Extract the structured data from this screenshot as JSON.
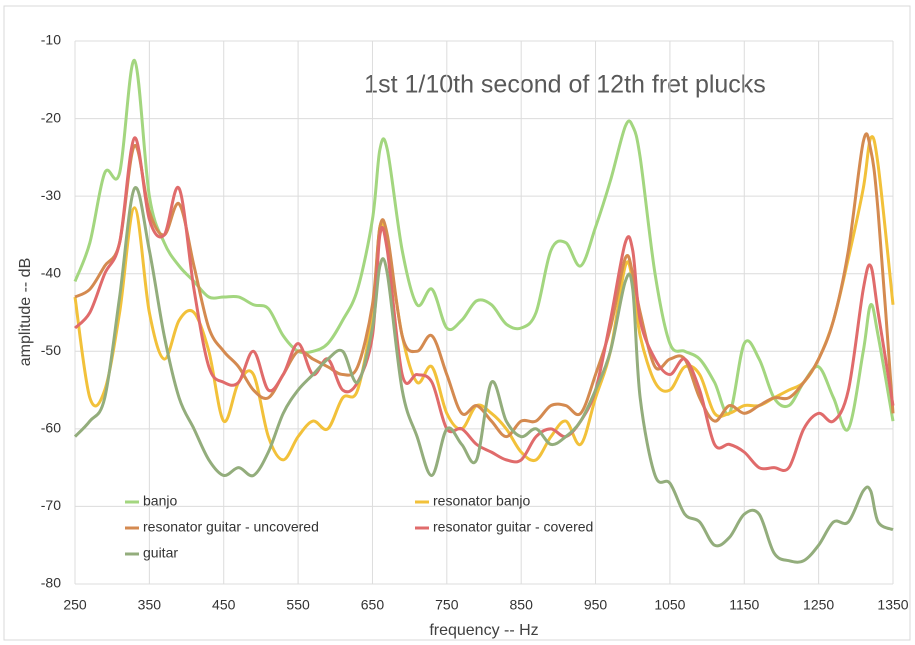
{
  "chart_data": {
    "type": "line",
    "title": "1st 1/10th second of 12th fret plucks",
    "x_label": "frequency -- Hz",
    "y_label": "amplitude -- dB",
    "x": [
      250,
      270,
      290,
      310,
      330,
      350,
      370,
      390,
      410,
      430,
      450,
      470,
      490,
      510,
      530,
      550,
      570,
      590,
      610,
      630,
      650,
      660,
      670,
      690,
      710,
      730,
      750,
      770,
      790,
      810,
      830,
      850,
      870,
      890,
      910,
      930,
      950,
      970,
      990,
      1000,
      1010,
      1030,
      1050,
      1070,
      1090,
      1110,
      1130,
      1150,
      1170,
      1190,
      1210,
      1230,
      1250,
      1270,
      1290,
      1310,
      1320,
      1330,
      1350
    ],
    "series": [
      {
        "name": "banjo",
        "color": "#a3d67f",
        "values": [
          -41,
          -36,
          -27,
          -27,
          -12.5,
          -30,
          -36,
          -39,
          -41,
          -43,
          -43,
          -43,
          -44,
          -44.5,
          -48,
          -50,
          -50,
          -49,
          -46,
          -42,
          -33,
          -24,
          -24,
          -37,
          -44,
          -42,
          -47,
          -46,
          -43.5,
          -44,
          -46.5,
          -47,
          -45,
          -37,
          -36,
          -39,
          -34,
          -28,
          -21,
          -21,
          -25,
          -40,
          -49,
          -50,
          -51,
          -54,
          -58,
          -49,
          -51,
          -56,
          -57,
          -54,
          -52,
          -56,
          -60,
          -50,
          -44,
          -48,
          -59
        ]
      },
      {
        "name": "resonator banjo",
        "color": "#f2c13a",
        "values": [
          -43,
          -56,
          -55,
          -45,
          -31.5,
          -45,
          -51,
          -46,
          -45,
          -50,
          -59,
          -54,
          -53,
          -61,
          -64,
          -61,
          -59,
          -60,
          -56,
          -55,
          -45,
          -34,
          -36,
          -48,
          -54,
          -52,
          -58,
          -60,
          -57,
          -58,
          -60,
          -63,
          -64,
          -61,
          -59,
          -62,
          -56,
          -50,
          -39,
          -41,
          -48,
          -54,
          -55,
          -52,
          -53,
          -58,
          -58,
          -57,
          -57,
          -56,
          -55,
          -54,
          -51,
          -46,
          -38,
          -29,
          -22.5,
          -26,
          -44
        ]
      },
      {
        "name": "resonator guitar - uncovered",
        "color": "#d48a50",
        "values": [
          -43,
          -42,
          -39,
          -36,
          -23.5,
          -32,
          -35,
          -31,
          -39,
          -47,
          -50,
          -52,
          -55,
          -56,
          -53,
          -50,
          -51,
          -52,
          -53,
          -52,
          -44,
          -34,
          -35,
          -48,
          -50,
          -48,
          -53,
          -58,
          -57,
          -59,
          -61,
          -59,
          -59,
          -57,
          -57,
          -58,
          -53,
          -47,
          -38,
          -40,
          -45,
          -52,
          -51,
          -51,
          -56,
          -59,
          -57,
          -58,
          -57,
          -56,
          -56,
          -54,
          -51,
          -46,
          -37,
          -23,
          -24,
          -32,
          -58
        ]
      },
      {
        "name": "resonator guitar - covered",
        "color": "#e06b6b",
        "values": [
          -47,
          -45,
          -40,
          -36,
          -22.5,
          -33,
          -35,
          -29,
          -42,
          -52,
          -54,
          -54,
          -50,
          -55,
          -53,
          -49,
          -53,
          -51,
          -55,
          -54,
          -48,
          -35,
          -37,
          -53,
          -53,
          -54,
          -60,
          -60,
          -62,
          -63,
          -64,
          -64,
          -61,
          -60,
          -61,
          -59,
          -55,
          -46,
          -36,
          -37,
          -46,
          -51,
          -53,
          -51,
          -55,
          -62,
          -62,
          -63,
          -65,
          -65,
          -65,
          -60,
          -58,
          -59,
          -55,
          -42,
          -39,
          -45,
          -57
        ]
      },
      {
        "name": "guitar",
        "color": "#93ad7c",
        "values": [
          -61,
          -59,
          -56,
          -43,
          -29,
          -37,
          -48,
          -56,
          -60,
          -64,
          -66,
          -65,
          -66,
          -63,
          -58,
          -55,
          -53,
          -51,
          -50,
          -54,
          -47,
          -39,
          -40,
          -55,
          -61,
          -66,
          -60,
          -62,
          -64,
          -54,
          -59,
          -61,
          -60,
          -62,
          -61,
          -59,
          -55,
          -50,
          -41,
          -42,
          -56,
          -66,
          -67,
          -71,
          -72,
          -75,
          -74,
          -71,
          -71,
          -76,
          -77,
          -77,
          -75,
          -72,
          -72,
          -68,
          -68,
          -72,
          -73
        ]
      }
    ],
    "xlim": [
      250,
      1350
    ],
    "xticks": [
      250,
      350,
      450,
      550,
      650,
      750,
      850,
      950,
      1050,
      1150,
      1250,
      1350
    ],
    "ylim": [
      -80,
      -10
    ],
    "yticks": [
      -80,
      -70,
      -60,
      -50,
      -40,
      -30,
      -20,
      -10
    ],
    "grid": true
  }
}
